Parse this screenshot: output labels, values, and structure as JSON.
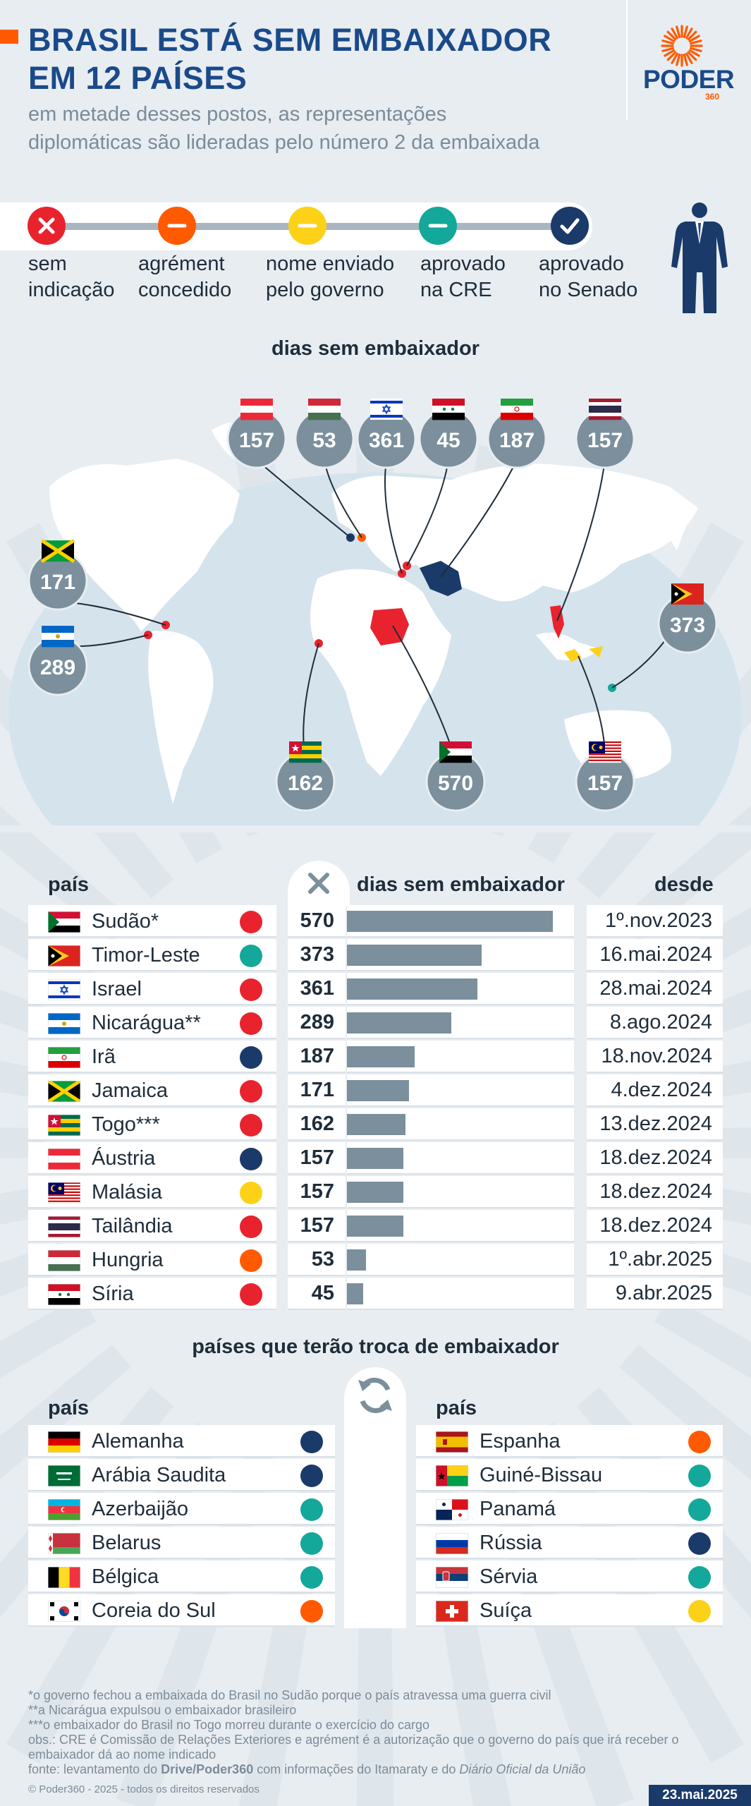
{
  "header": {
    "title_line1": "BRASIL ESTÁ SEM EMBAIXADOR",
    "title_line2": "EM 12 PAÍSES",
    "subtitle_line1": "em metade desses postos, as representações",
    "subtitle_line2": "diplomáticas são lideradas pelo número 2 da embaixada",
    "logo_text": "PODER",
    "logo_sub": "360"
  },
  "colors": {
    "sem_indicacao": "#e8232e",
    "agrement_concedido": "#ff5a00",
    "nome_enviado": "#fcd118",
    "aprovado_cre": "#13a899",
    "aprovado_senado": "#1a3a6a",
    "bar": "#7b8f9c",
    "title": "#1a4a8a"
  },
  "legend": [
    {
      "status": "sem_indicacao",
      "icon": "x-icon",
      "line1": "sem",
      "line2": "indicação"
    },
    {
      "status": "agrement_concedido",
      "icon": "minus-icon",
      "line1": "agrément",
      "line2": "concedido"
    },
    {
      "status": "nome_enviado",
      "icon": "minus-icon",
      "line1": "nome enviado",
      "line2": "pelo governo"
    },
    {
      "status": "aprovado_cre",
      "icon": "minus-icon",
      "line1": "aprovado",
      "line2": "na CRE"
    },
    {
      "status": "aprovado_senado",
      "icon": "check-icon",
      "line1": "aprovado",
      "line2": "no Senado"
    }
  ],
  "map": {
    "title": "dias sem embaixador",
    "bubbles": [
      {
        "country": "Áustria",
        "flag": "austria",
        "days": "157"
      },
      {
        "country": "Hungria",
        "flag": "hungary",
        "days": "53"
      },
      {
        "country": "Israel",
        "flag": "israel",
        "days": "361"
      },
      {
        "country": "Síria",
        "flag": "syria",
        "days": "45"
      },
      {
        "country": "Irã",
        "flag": "iran",
        "days": "187"
      },
      {
        "country": "Tailândia",
        "flag": "thailand",
        "days": "157"
      },
      {
        "country": "Jamaica",
        "flag": "jamaica",
        "days": "171"
      },
      {
        "country": "Nicarágua",
        "flag": "nicaragua",
        "days": "289"
      },
      {
        "country": "Timor-Leste",
        "flag": "timor",
        "days": "373"
      },
      {
        "country": "Togo",
        "flag": "togo",
        "days": "162"
      },
      {
        "country": "Sudão",
        "flag": "sudan",
        "days": "570"
      },
      {
        "country": "Malásia",
        "flag": "malaysia",
        "days": "157"
      }
    ]
  },
  "table": {
    "headers": {
      "country": "país",
      "days": "dias sem embaixador",
      "since": "desde"
    },
    "x_icon": "x-icon"
  },
  "chart_data": {
    "type": "bar",
    "title": "dias sem embaixador",
    "categories": [
      "Sudão*",
      "Timor-Leste",
      "Israel",
      "Nicarágua**",
      "Irã",
      "Jamaica",
      "Togo***",
      "Áustria",
      "Malásia",
      "Tailândia",
      "Hungria",
      "Síria"
    ],
    "values": [
      570,
      373,
      361,
      289,
      187,
      171,
      162,
      157,
      157,
      157,
      53,
      45
    ],
    "since": [
      "1º.nov.2023",
      "16.mai.2024",
      "28.mai.2024",
      "8.ago.2024",
      "18.nov.2024",
      "4.dez.2024",
      "13.dez.2024",
      "18.dez.2024",
      "18.dez.2024",
      "18.dez.2024",
      "1º.abr.2025",
      "9.abr.2025"
    ],
    "status": [
      "sem_indicacao",
      "aprovado_cre",
      "sem_indicacao",
      "sem_indicacao",
      "aprovado_senado",
      "sem_indicacao",
      "sem_indicacao",
      "aprovado_senado",
      "nome_enviado",
      "sem_indicacao",
      "agrement_concedido",
      "sem_indicacao"
    ],
    "flags": [
      "sudan",
      "timor",
      "israel",
      "nicaragua",
      "iran",
      "jamaica",
      "togo",
      "austria",
      "malaysia",
      "thailand",
      "hungary",
      "syria"
    ],
    "ylim": [
      0,
      570
    ]
  },
  "swap": {
    "title": "países que terão troca de embaixador",
    "header": "país",
    "icon": "refresh-icon",
    "left": [
      {
        "name": "Alemanha",
        "flag": "germany",
        "status": "aprovado_senado"
      },
      {
        "name": "Arábia Saudita",
        "flag": "saudi",
        "status": "aprovado_senado"
      },
      {
        "name": "Azerbaijão",
        "flag": "azerbaijan",
        "status": "aprovado_cre"
      },
      {
        "name": "Belarus",
        "flag": "belarus",
        "status": "aprovado_cre"
      },
      {
        "name": "Bélgica",
        "flag": "belgium",
        "status": "aprovado_cre"
      },
      {
        "name": "Coreia do Sul",
        "flag": "korea",
        "status": "agrement_concedido"
      }
    ],
    "right": [
      {
        "name": "Espanha",
        "flag": "spain",
        "status": "agrement_concedido"
      },
      {
        "name": "Guiné-Bissau",
        "flag": "guinea_bissau",
        "status": "aprovado_cre"
      },
      {
        "name": "Panamá",
        "flag": "panama",
        "status": "aprovado_cre"
      },
      {
        "name": "Rússia",
        "flag": "russia",
        "status": "aprovado_senado"
      },
      {
        "name": "Sérvia",
        "flag": "serbia",
        "status": "aprovado_cre"
      },
      {
        "name": "Suíça",
        "flag": "switzerland",
        "status": "nome_enviado"
      }
    ]
  },
  "footer": {
    "note1": "*o governo fechou a embaixada do Brasil no Sudão porque o país atravessa uma guerra civil",
    "note2": "**a Nicarágua expulsou o embaixador brasileiro",
    "note3": "***o embaixador do Brasil no Togo morreu durante o exercício do cargo",
    "note4": "obs.: CRE é Comissão de Relações Exteriores e agrément é a autorização que o governo do país que irá receber o embaixador dá ao nome indicado",
    "source_prefix": "fonte: levantamento do ",
    "source_bold": "Drive/Poder360",
    "source_mid": " com informações do Itamaraty e do ",
    "source_italic": "Diário Oficial da União",
    "copyright": "© Poder360 - 2025 - todos os direitos reservados",
    "date": "23.mai.2025"
  }
}
